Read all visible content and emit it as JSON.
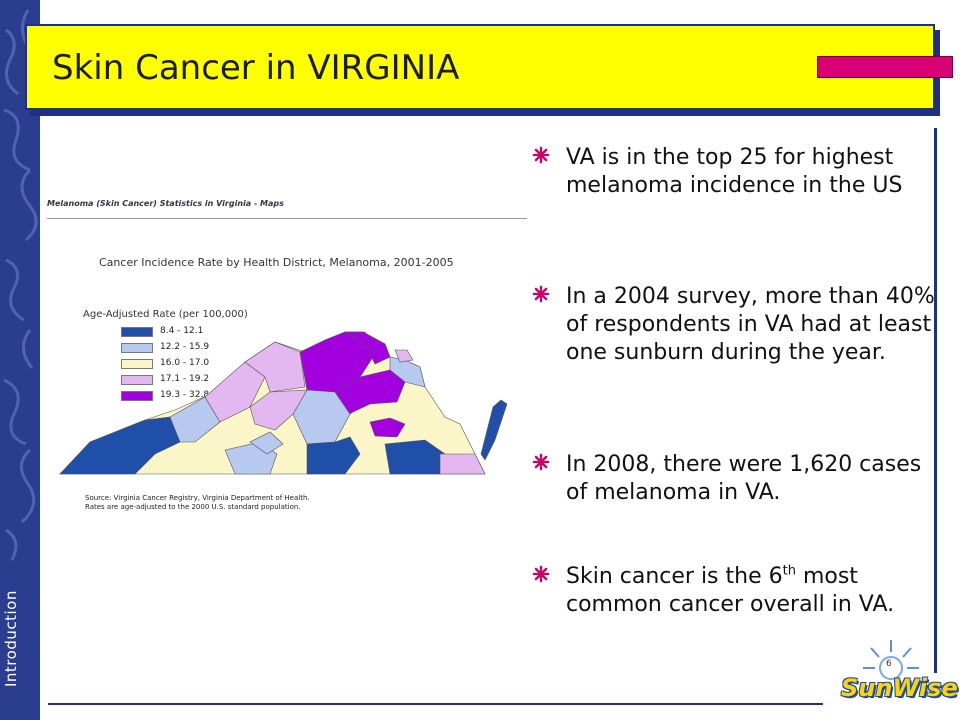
{
  "sidebar": {
    "label": "Introduction"
  },
  "slide": {
    "title": "Skin Cancer in VIRGINIA",
    "page_number": "6",
    "accent_color": "#d80073",
    "title_bar_color": "#ffff00",
    "navy_color": "#1f2f86"
  },
  "bullets": [
    {
      "icon": "asterisk-icon",
      "text": "VA is in the top 25 for highest melanoma incidence in the US"
    },
    {
      "icon": "asterisk-icon",
      "text": "In a 2004 survey, more than 40% of respondents in VA had at least one sunburn during the year."
    },
    {
      "icon": "asterisk-icon",
      "text": "In 2008, there were 1,620 cases of melanoma in VA."
    },
    {
      "icon": "asterisk-icon",
      "text_before": "Skin cancer is the 6",
      "text_sup": "th",
      "text_after": " most common cancer overall in VA."
    }
  ],
  "figure": {
    "heading": "Melanoma (Skin Cancer) Statistics in Virginia - Maps",
    "title": "Cancer Incidence Rate by Health District, Melanoma, 2001-2005",
    "legend_title": "Age-Adjusted Rate (per 100,000)",
    "legend": [
      {
        "label": "8.4 - 12.1",
        "color": "#1f4fa8"
      },
      {
        "label": "12.2 - 15.9",
        "color": "#b8c9f0"
      },
      {
        "label": "16.0 - 17.0",
        "color": "#fbf6c8"
      },
      {
        "label": "17.1 - 19.2",
        "color": "#e3b8f0"
      },
      {
        "label": "19.3 - 32.8",
        "color": "#a300e0"
      }
    ],
    "source_line1": "Source: Virginia Cancer Registry, Virginia Department of Health.",
    "source_line2": "Rates are age-adjusted to the 2000 U.S. standard population."
  },
  "logo": {
    "text": "SunWise"
  }
}
